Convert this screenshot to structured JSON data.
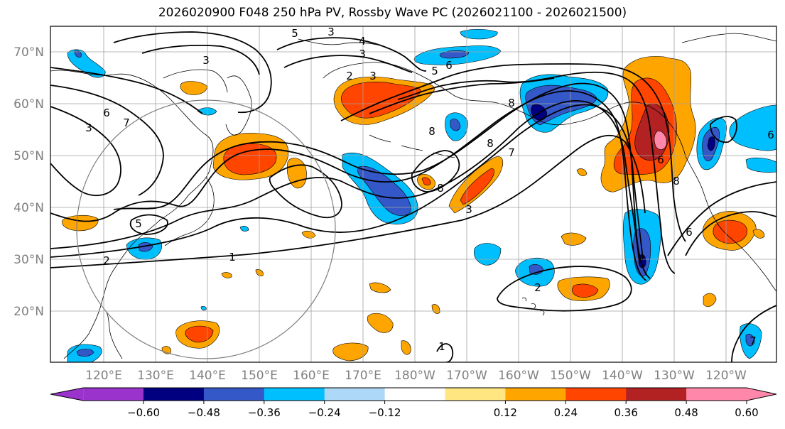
{
  "title": "2026020900 F048 250 hPa PV, Rossby Wave PC (2026021100 - 2026021500)",
  "map": {
    "lat_labels": [
      "70°N",
      "60°N",
      "50°N",
      "40°N",
      "30°N",
      "20°N"
    ],
    "lon_labels": [
      "120°E",
      "130°E",
      "140°E",
      "150°E",
      "160°E",
      "170°E",
      "180°W",
      "170°W",
      "160°W",
      "150°W",
      "140°W",
      "130°W",
      "120°W"
    ],
    "contour_labels": [
      "5",
      "3",
      "4",
      "3",
      "2",
      "3",
      "6",
      "8",
      "3",
      "7",
      "6",
      "3",
      "5",
      "8",
      "8",
      "7",
      "8",
      "5",
      "3",
      "6",
      "8",
      "6",
      "6",
      "1",
      "2",
      "2",
      "1",
      "7"
    ],
    "colors": {
      "label_gray": "#7f7f7f",
      "grid": "#a0a0a0"
    }
  },
  "colorbar": {
    "ticks": [
      "−0.60",
      "−0.48",
      "−0.36",
      "−0.24",
      "−0.12",
      "0.12",
      "0.24",
      "0.36",
      "0.48",
      "0.60"
    ],
    "colors": [
      "#9933cc",
      "#000080",
      "#3558c8",
      "#00bfff",
      "#add8f7",
      "#ffffff",
      "#ffe680",
      "#ffa500",
      "#ff4500",
      "#b22222",
      "#ff88aa",
      "#ff88aa"
    ]
  }
}
